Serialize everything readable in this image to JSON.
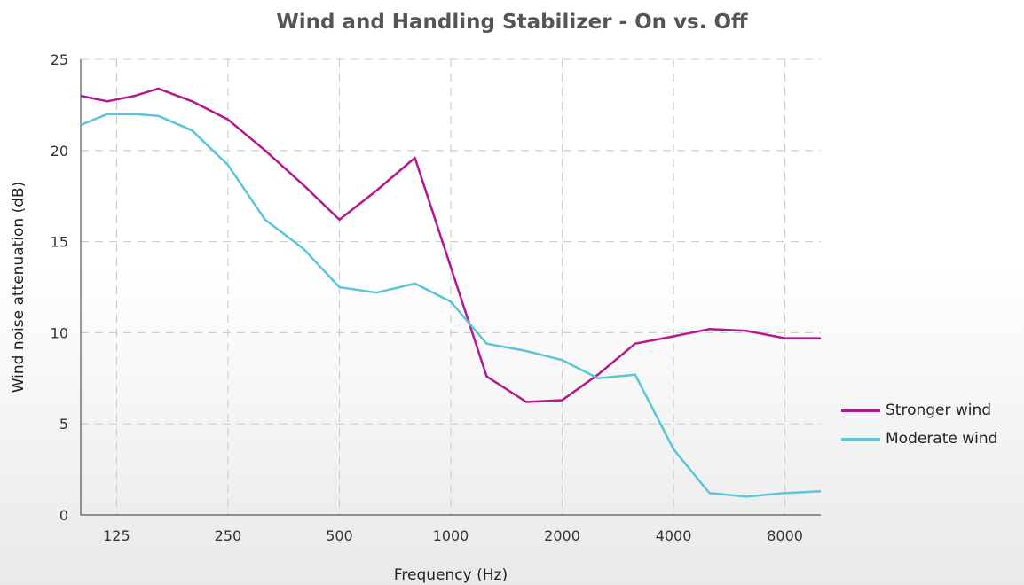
{
  "chart_data": {
    "type": "line",
    "title": "Wind and Handling Stabilizer - On vs. Off",
    "xlabel": "Frequency (Hz)",
    "ylabel": "Wind noise attenuation (dB)",
    "x_scale": "log2",
    "xlim": [
      100,
      10000
    ],
    "ylim": [
      0,
      25
    ],
    "yticks": [
      0,
      5,
      10,
      15,
      20,
      25
    ],
    "xticks": [
      125,
      250,
      500,
      1000,
      2000,
      4000,
      8000
    ],
    "xtick_labels": [
      "125",
      "250",
      "500",
      "1000",
      "2000",
      "4000",
      "8000"
    ],
    "grid": true,
    "legend_position": "right",
    "x": [
      100,
      118,
      140,
      162,
      200,
      250,
      315,
      400,
      500,
      630,
      800,
      1000,
      1250,
      1600,
      2000,
      2500,
      3150,
      4000,
      5000,
      6300,
      8000,
      10000
    ],
    "series": [
      {
        "name": "Stronger wind",
        "color": "#b5178e",
        "values": [
          23.0,
          22.7,
          23.0,
          23.4,
          22.7,
          21.7,
          20.0,
          18.1,
          16.2,
          17.8,
          19.6,
          13.6,
          7.6,
          6.2,
          6.3,
          7.7,
          9.4,
          9.8,
          10.2,
          10.1,
          9.7,
          9.7
        ]
      },
      {
        "name": "Moderate wind",
        "color": "#5bc6d6",
        "values": [
          21.4,
          22.0,
          22.0,
          21.9,
          21.1,
          19.2,
          16.2,
          14.6,
          12.5,
          12.2,
          12.7,
          11.7,
          9.4,
          9.0,
          8.5,
          7.5,
          7.7,
          3.6,
          1.2,
          1.0,
          1.2,
          1.3
        ]
      }
    ]
  }
}
